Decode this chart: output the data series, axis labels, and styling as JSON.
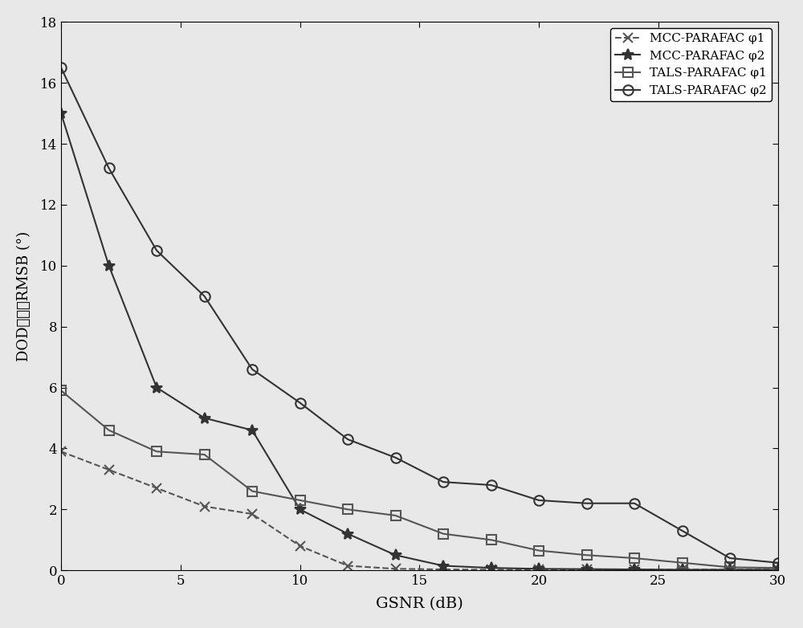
{
  "xlabel": "GSNR (dB)",
  "ylabel": "DOD估计的RMSB (°)",
  "xlim": [
    0,
    30
  ],
  "ylim": [
    0,
    18
  ],
  "xticks": [
    0,
    5,
    10,
    15,
    20,
    25,
    30
  ],
  "yticks": [
    0,
    2,
    4,
    6,
    8,
    10,
    12,
    14,
    16,
    18
  ],
  "series": [
    {
      "label": "MCC-PARAFAC φ1",
      "x": [
        0,
        2,
        4,
        6,
        8,
        10,
        12,
        14,
        16,
        18,
        20,
        22,
        24,
        26,
        28,
        30
      ],
      "y": [
        3.9,
        3.3,
        2.7,
        2.1,
        1.85,
        0.8,
        0.15,
        0.05,
        0.03,
        0.02,
        0.02,
        0.02,
        0.02,
        0.02,
        0.02,
        0.02
      ],
      "color": "#555555",
      "linestyle": "--",
      "marker": "x",
      "markersize": 8,
      "linewidth": 1.5
    },
    {
      "label": "MCC-PARAFAC φ2",
      "x": [
        0,
        2,
        4,
        6,
        8,
        10,
        12,
        14,
        16,
        18,
        20,
        22,
        24,
        26,
        28,
        30
      ],
      "y": [
        15.0,
        10.0,
        6.0,
        5.0,
        4.6,
        2.0,
        1.2,
        0.5,
        0.15,
        0.08,
        0.05,
        0.04,
        0.03,
        0.02,
        0.02,
        0.02
      ],
      "color": "#333333",
      "linestyle": "-",
      "marker": "*",
      "markersize": 10,
      "linewidth": 1.5
    },
    {
      "label": "TALS-PARAFAC φ1",
      "x": [
        0,
        2,
        4,
        6,
        8,
        10,
        12,
        14,
        16,
        18,
        20,
        22,
        24,
        26,
        28,
        30
      ],
      "y": [
        5.9,
        4.6,
        3.9,
        3.8,
        2.6,
        2.3,
        2.0,
        1.8,
        1.2,
        1.0,
        0.65,
        0.5,
        0.4,
        0.25,
        0.1,
        0.08
      ],
      "color": "#555555",
      "linestyle": "-",
      "marker": "s",
      "markersize": 8,
      "linewidth": 1.5
    },
    {
      "label": "TALS-PARAFAC φ2",
      "x": [
        0,
        2,
        4,
        6,
        8,
        10,
        12,
        14,
        16,
        18,
        20,
        22,
        24,
        26,
        28,
        30
      ],
      "y": [
        16.5,
        13.2,
        10.5,
        9.0,
        6.6,
        5.5,
        4.3,
        3.7,
        2.9,
        2.8,
        2.3,
        2.2,
        2.2,
        1.3,
        0.4,
        0.25
      ],
      "color": "#333333",
      "linestyle": "-",
      "marker": "o",
      "markersize": 9,
      "linewidth": 1.5
    }
  ],
  "legend_loc": "upper right",
  "grid": false,
  "background_color": "#e8e8e8",
  "fig_width": 10.0,
  "fig_height": 7.82
}
